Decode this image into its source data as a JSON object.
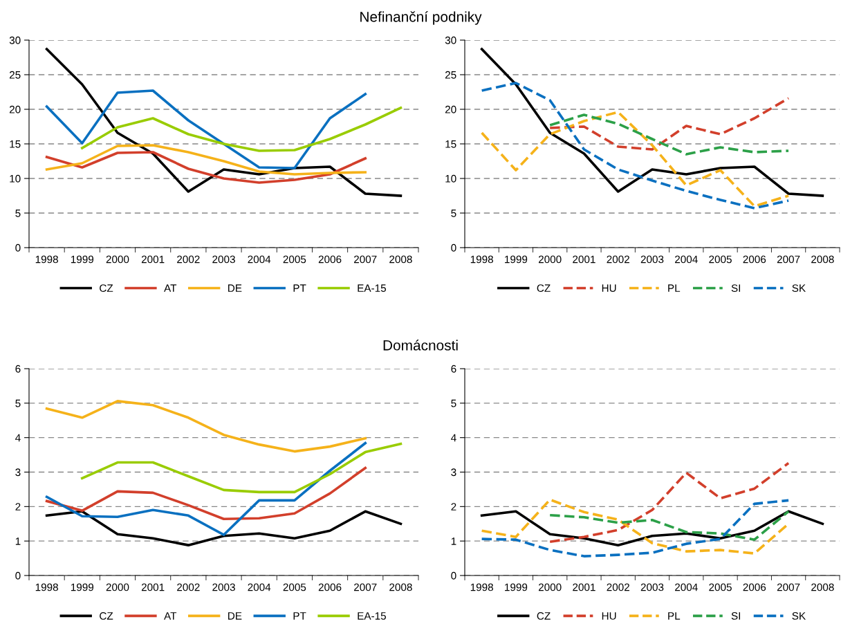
{
  "chart_data": [
    {
      "type": "line",
      "title": "Nefinanční podniky",
      "categories": [
        "1998",
        "1999",
        "2000",
        "2001",
        "2002",
        "2003",
        "2004",
        "2005",
        "2006",
        "2007",
        "2008"
      ],
      "ylim": [
        0,
        30
      ],
      "yticks": [
        0,
        5,
        10,
        15,
        20,
        25,
        30
      ],
      "grid": "y",
      "legend": "bottom",
      "series": [
        {
          "name": "CZ",
          "color": "#000000",
          "line_style": "solid",
          "values": [
            28.7,
            23.6,
            16.6,
            13.6,
            8.1,
            11.3,
            10.6,
            11.5,
            11.7,
            7.8,
            7.5
          ]
        },
        {
          "name": "AT",
          "color": "#d23f2b",
          "line_style": "solid",
          "values": [
            13.1,
            11.6,
            13.7,
            13.8,
            11.4,
            10.0,
            9.4,
            9.8,
            10.6,
            12.9,
            null
          ]
        },
        {
          "name": "DE",
          "color": "#f5b21a",
          "line_style": "solid",
          "values": [
            11.3,
            12.2,
            14.7,
            14.8,
            13.8,
            12.5,
            11.0,
            10.6,
            10.8,
            10.9,
            null
          ]
        },
        {
          "name": "PT",
          "color": "#0a70c0",
          "line_style": "solid",
          "values": [
            20.4,
            15.1,
            22.4,
            22.7,
            18.4,
            15.0,
            11.6,
            11.5,
            18.7,
            22.2,
            null
          ]
        },
        {
          "name": "EA-15",
          "color": "#99cc00",
          "line_style": "solid",
          "values": [
            null,
            14.4,
            17.4,
            18.7,
            16.4,
            15.0,
            14.0,
            14.1,
            15.7,
            17.8,
            20.2
          ]
        }
      ]
    },
    {
      "type": "line",
      "categories": [
        "1998",
        "1999",
        "2000",
        "2001",
        "2002",
        "2003",
        "2004",
        "2005",
        "2006",
        "2007",
        "2008"
      ],
      "ylim": [
        0,
        30
      ],
      "yticks": [
        0,
        5,
        10,
        15,
        20,
        25,
        30
      ],
      "grid": "y",
      "legend": "bottom",
      "series": [
        {
          "name": "CZ",
          "color": "#000000",
          "line_style": "solid",
          "values": [
            28.7,
            23.6,
            16.6,
            13.6,
            8.1,
            11.3,
            10.6,
            11.5,
            11.7,
            7.8,
            7.5
          ]
        },
        {
          "name": "HU",
          "color": "#d23f2b",
          "line_style": "dashed",
          "values": [
            null,
            null,
            17.3,
            17.5,
            14.6,
            14.2,
            17.6,
            16.4,
            18.7,
            21.6,
            null
          ]
        },
        {
          "name": "PL",
          "color": "#f5b21a",
          "line_style": "dashed",
          "values": [
            16.6,
            11.2,
            16.4,
            18.3,
            19.6,
            14.8,
            9.0,
            11.2,
            6.0,
            7.5,
            null
          ]
        },
        {
          "name": "SI",
          "color": "#2ca048",
          "line_style": "dashed",
          "values": [
            null,
            null,
            17.7,
            19.2,
            17.9,
            15.7,
            13.5,
            14.5,
            13.8,
            14.0,
            null
          ]
        },
        {
          "name": "SK",
          "color": "#0a70c0",
          "line_style": "dashed",
          "values": [
            22.7,
            23.8,
            21.3,
            14.2,
            11.3,
            9.7,
            8.2,
            6.9,
            5.7,
            6.8,
            null
          ]
        }
      ]
    },
    {
      "type": "line",
      "title": "Domácnosti",
      "categories": [
        "1998",
        "1999",
        "2000",
        "2001",
        "2002",
        "2003",
        "2004",
        "2005",
        "2006",
        "2007",
        "2008"
      ],
      "ylim": [
        0,
        6
      ],
      "yticks": [
        0,
        1,
        2,
        3,
        4,
        5,
        6
      ],
      "grid": "y",
      "legend": "bottom",
      "series": [
        {
          "name": "CZ",
          "color": "#000000",
          "line_style": "solid",
          "values": [
            1.74,
            1.86,
            1.2,
            1.08,
            0.88,
            1.15,
            1.22,
            1.08,
            1.3,
            1.86,
            1.5
          ]
        },
        {
          "name": "AT",
          "color": "#d23f2b",
          "line_style": "solid",
          "values": [
            2.16,
            1.88,
            2.44,
            2.4,
            2.04,
            1.64,
            1.66,
            1.8,
            2.38,
            3.12,
            null
          ]
        },
        {
          "name": "DE",
          "color": "#f5b21a",
          "line_style": "solid",
          "values": [
            4.84,
            4.58,
            5.06,
            4.94,
            4.58,
            4.08,
            3.8,
            3.6,
            3.74,
            3.98,
            null
          ]
        },
        {
          "name": "PT",
          "color": "#0a70c0",
          "line_style": "solid",
          "values": [
            2.28,
            1.72,
            1.7,
            1.9,
            1.74,
            1.18,
            2.18,
            2.18,
            3.04,
            3.84,
            null
          ]
        },
        {
          "name": "EA-15",
          "color": "#99cc00",
          "line_style": "solid",
          "values": [
            null,
            2.82,
            3.28,
            3.28,
            2.88,
            2.48,
            2.42,
            2.42,
            2.94,
            3.58,
            3.82
          ]
        }
      ]
    },
    {
      "type": "line",
      "categories": [
        "1998",
        "1999",
        "2000",
        "2001",
        "2002",
        "2003",
        "2004",
        "2005",
        "2006",
        "2007",
        "2008"
      ],
      "ylim": [
        0,
        6
      ],
      "yticks": [
        0,
        1,
        2,
        3,
        4,
        5,
        6
      ],
      "grid": "y",
      "legend": "bottom",
      "series": [
        {
          "name": "CZ",
          "color": "#000000",
          "line_style": "solid",
          "values": [
            1.74,
            1.86,
            1.2,
            1.08,
            0.88,
            1.15,
            1.22,
            1.08,
            1.3,
            1.86,
            1.5
          ]
        },
        {
          "name": "HU",
          "color": "#d23f2b",
          "line_style": "dashed",
          "values": [
            null,
            null,
            0.98,
            1.12,
            1.32,
            1.9,
            2.98,
            2.24,
            2.52,
            3.26,
            null
          ]
        },
        {
          "name": "PL",
          "color": "#f5b21a",
          "line_style": "dashed",
          "values": [
            1.3,
            1.12,
            2.2,
            1.84,
            1.62,
            0.94,
            0.7,
            0.74,
            0.64,
            1.5,
            null
          ]
        },
        {
          "name": "SI",
          "color": "#2ca048",
          "line_style": "dashed",
          "values": [
            null,
            null,
            1.75,
            1.69,
            1.53,
            1.61,
            1.26,
            1.22,
            1.04,
            1.86,
            null
          ]
        },
        {
          "name": "SK",
          "color": "#0a70c0",
          "line_style": "dashed",
          "values": [
            1.06,
            1.04,
            0.74,
            0.56,
            0.6,
            0.66,
            0.92,
            1.06,
            2.08,
            2.18,
            null
          ]
        }
      ]
    }
  ]
}
